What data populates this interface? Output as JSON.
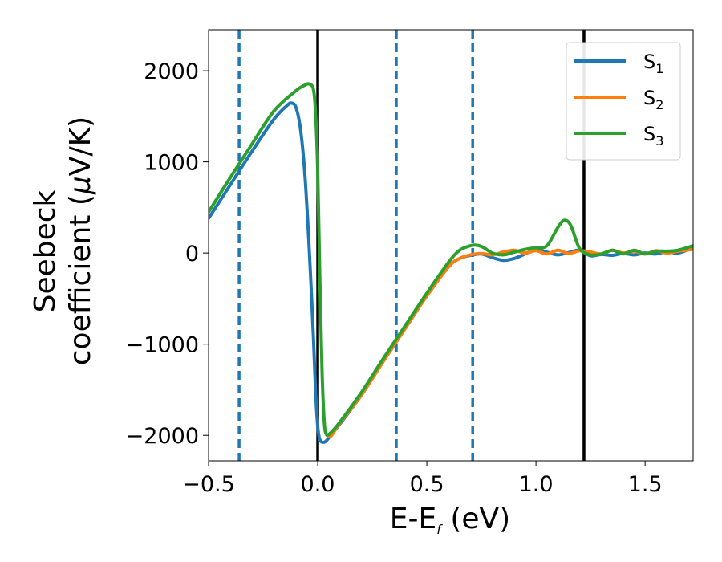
{
  "chart_data": {
    "type": "line",
    "xlabel": {
      "main": "E-E",
      "sub": "f",
      "tail": " (eV)"
    },
    "ylabel": {
      "line1": "Seebeck",
      "line2a": "coefficient  (",
      "mu": "μ",
      "line2b": "V/K)"
    },
    "xlim": [
      -0.5,
      1.72
    ],
    "ylim": [
      -2280,
      2450
    ],
    "xticks": [
      -0.5,
      0.0,
      0.5,
      1.0,
      1.5
    ],
    "xtick_labels": [
      "−0.5",
      "0.0",
      "0.5",
      "1.0",
      "1.5"
    ],
    "yticks": [
      -2000,
      -1000,
      0,
      1000,
      2000
    ],
    "ytick_labels": [
      "−2000",
      "−1000",
      "0",
      "1000",
      "2000"
    ],
    "grid": false,
    "legend_position": "top-right",
    "vlines_dashed": [
      -0.36,
      0.36,
      0.71
    ],
    "vlines_solid": [
      0.0,
      1.22
    ],
    "series": [
      {
        "name": "S",
        "sub": "1",
        "color": "#1f77b4",
        "points": [
          [
            -0.5,
            380
          ],
          [
            -0.4,
            750
          ],
          [
            -0.3,
            1120
          ],
          [
            -0.2,
            1470
          ],
          [
            -0.14,
            1620
          ],
          [
            -0.12,
            1645
          ],
          [
            -0.1,
            1600
          ],
          [
            -0.08,
            1380
          ],
          [
            -0.06,
            900
          ],
          [
            -0.04,
            100
          ],
          [
            -0.02,
            -900
          ],
          [
            -0.01,
            -1500
          ],
          [
            0.0,
            -1900
          ],
          [
            0.01,
            -2050
          ],
          [
            0.03,
            -2075
          ],
          [
            0.05,
            -2030
          ],
          [
            0.1,
            -1880
          ],
          [
            0.2,
            -1560
          ],
          [
            0.3,
            -1190
          ],
          [
            0.4,
            -830
          ],
          [
            0.5,
            -470
          ],
          [
            0.6,
            -150
          ],
          [
            0.65,
            -60
          ],
          [
            0.7,
            -25
          ],
          [
            0.75,
            -10
          ],
          [
            0.8,
            -50
          ],
          [
            0.85,
            -80
          ],
          [
            0.9,
            -60
          ],
          [
            0.95,
            -10
          ],
          [
            1.0,
            40
          ],
          [
            1.05,
            10
          ],
          [
            1.1,
            -20
          ],
          [
            1.15,
            5
          ],
          [
            1.2,
            30
          ],
          [
            1.25,
            -30
          ],
          [
            1.3,
            -15
          ],
          [
            1.35,
            -25
          ],
          [
            1.4,
            -5
          ],
          [
            1.45,
            -20
          ],
          [
            1.5,
            0
          ],
          [
            1.55,
            -10
          ],
          [
            1.6,
            15
          ],
          [
            1.65,
            0
          ],
          [
            1.72,
            60
          ]
        ]
      },
      {
        "name": "S",
        "sub": "2",
        "color": "#ff7f0e",
        "points": [
          [
            0.04,
            -1990
          ],
          [
            0.06,
            -2010
          ],
          [
            0.1,
            -1870
          ],
          [
            0.2,
            -1560
          ],
          [
            0.3,
            -1190
          ],
          [
            0.4,
            -830
          ],
          [
            0.5,
            -470
          ],
          [
            0.6,
            -150
          ],
          [
            0.65,
            -60
          ],
          [
            0.7,
            -20
          ],
          [
            0.75,
            -5
          ],
          [
            0.8,
            -20
          ],
          [
            0.85,
            10
          ],
          [
            0.9,
            30
          ],
          [
            0.95,
            0
          ],
          [
            1.0,
            25
          ],
          [
            1.05,
            -10
          ],
          [
            1.1,
            30
          ],
          [
            1.15,
            -5
          ],
          [
            1.2,
            25
          ],
          [
            1.25,
            10
          ],
          [
            1.3,
            -10
          ],
          [
            1.35,
            30
          ],
          [
            1.4,
            0
          ],
          [
            1.45,
            20
          ],
          [
            1.5,
            -10
          ],
          [
            1.55,
            25
          ],
          [
            1.6,
            0
          ],
          [
            1.65,
            20
          ],
          [
            1.72,
            40
          ]
        ]
      },
      {
        "name": "S",
        "sub": "3",
        "color": "#2ca02c",
        "points": [
          [
            -0.5,
            450
          ],
          [
            -0.4,
            830
          ],
          [
            -0.3,
            1200
          ],
          [
            -0.2,
            1560
          ],
          [
            -0.1,
            1780
          ],
          [
            -0.06,
            1840
          ],
          [
            -0.04,
            1855
          ],
          [
            -0.02,
            1800
          ],
          [
            -0.01,
            1550
          ],
          [
            0.0,
            900
          ],
          [
            0.01,
            -300
          ],
          [
            0.02,
            -1300
          ],
          [
            0.03,
            -1850
          ],
          [
            0.04,
            -1990
          ],
          [
            0.06,
            -1970
          ],
          [
            0.1,
            -1860
          ],
          [
            0.2,
            -1530
          ],
          [
            0.3,
            -1160
          ],
          [
            0.4,
            -800
          ],
          [
            0.5,
            -440
          ],
          [
            0.6,
            -100
          ],
          [
            0.65,
            30
          ],
          [
            0.7,
            80
          ],
          [
            0.73,
            85
          ],
          [
            0.76,
            60
          ],
          [
            0.8,
            0
          ],
          [
            0.85,
            -20
          ],
          [
            0.9,
            10
          ],
          [
            0.95,
            40
          ],
          [
            1.0,
            60
          ],
          [
            1.05,
            80
          ],
          [
            1.1,
            280
          ],
          [
            1.13,
            360
          ],
          [
            1.16,
            300
          ],
          [
            1.2,
            50
          ],
          [
            1.25,
            -20
          ],
          [
            1.3,
            -10
          ],
          [
            1.35,
            30
          ],
          [
            1.4,
            -10
          ],
          [
            1.45,
            30
          ],
          [
            1.5,
            -10
          ],
          [
            1.55,
            20
          ],
          [
            1.6,
            20
          ],
          [
            1.65,
            30
          ],
          [
            1.72,
            80
          ]
        ]
      }
    ]
  }
}
